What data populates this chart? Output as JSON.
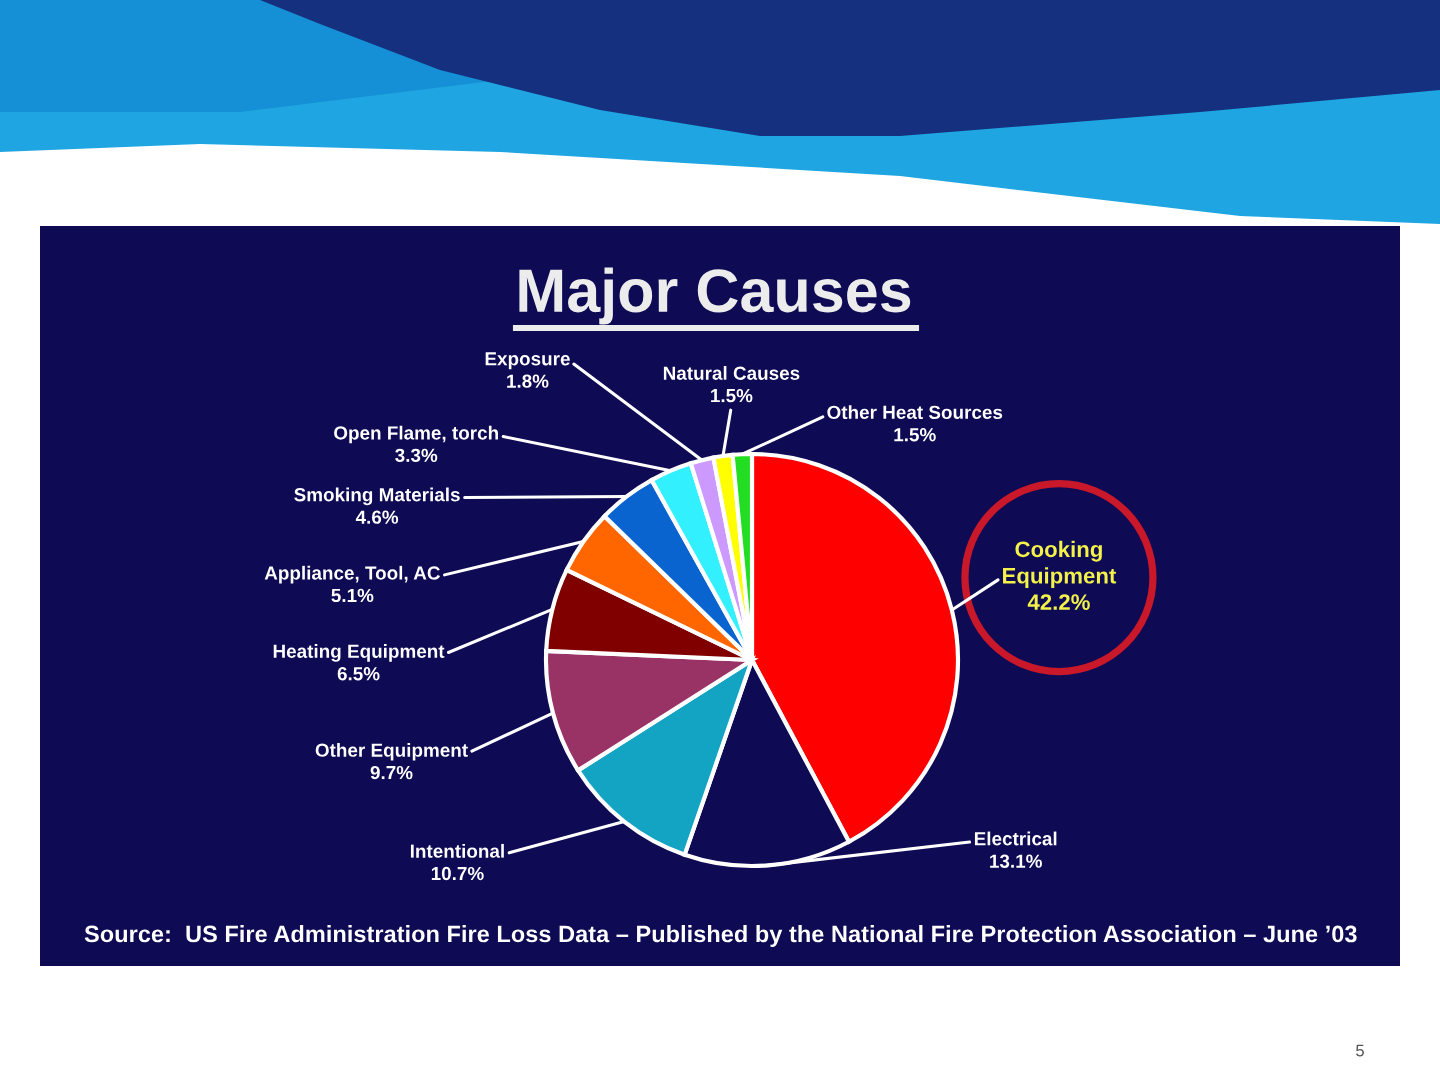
{
  "chart_data": {
    "type": "pie",
    "title": "Major Causes",
    "categories": [
      "Cooking Equipment",
      "Electrical",
      "Intentional",
      "Other Equipment",
      "Heating Equipment",
      "Appliance, Tool, AC",
      "Smoking Materials",
      "Open Flame, torch",
      "Exposure",
      "Natural Causes",
      "Other Heat Sources"
    ],
    "values": [
      42.2,
      13.1,
      10.7,
      9.7,
      6.5,
      5.1,
      4.6,
      3.3,
      1.8,
      1.5,
      1.5
    ],
    "value_labels": [
      "42.2%",
      "13.1%",
      "10.7%",
      "9.7%",
      "6.5%",
      "5.1%",
      "4.6%",
      "3.3%",
      "1.8%",
      "1.5%",
      "1.5%"
    ],
    "colors": [
      "#ff0000",
      "#0e0a54",
      "#13a3c3",
      "#993366",
      "#800000",
      "#ff6600",
      "#0a64d0",
      "#33f0ff",
      "#cc99ff",
      "#ffff00",
      "#22dd22"
    ],
    "annotations": [
      "Source:  US Fire Administration Fire Loss Data – Published by the National Fire Protection Association – June ’03",
      "5"
    ]
  }
}
